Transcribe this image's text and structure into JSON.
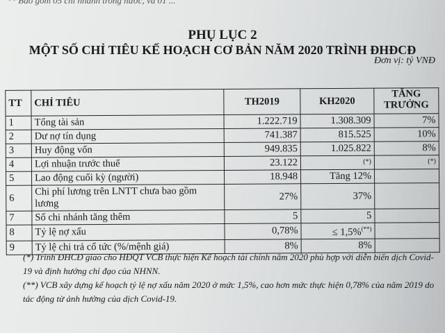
{
  "top_note": "** Bao gồm 05 chi nhánh trong nước, và 01 ...",
  "title": "PHỤ LỤC 2",
  "subtitle": "MỘT SỐ CHỈ TIÊU KẾ HOẠCH CƠ BẢN NĂM 2020 TRÌNH ĐHĐCĐ",
  "unit": "Đơn vị: tỷ VNĐ",
  "table": {
    "headers": [
      "TT",
      "CHỈ TIÊU",
      "TH2019",
      "KH2020",
      "TĂNG TRƯỞNG"
    ],
    "rows": [
      {
        "tt": "1",
        "name": "Tổng tài sản",
        "th2019": "1.222.719",
        "kh2020": "1.308.309",
        "growth": "7%"
      },
      {
        "tt": "2",
        "name": "Dư nợ tín dụng",
        "th2019": "741.387",
        "kh2020": "815.525",
        "growth": "10%"
      },
      {
        "tt": "3",
        "name": "Huy động vốn",
        "th2019": "949.835",
        "kh2020": "1.025.822",
        "growth": "8%"
      },
      {
        "tt": "4",
        "name": "Lợi nhuận trước thuế",
        "th2019": "23.122",
        "kh2020": "(*)",
        "growth": "(*)"
      },
      {
        "tt": "5",
        "name": "Lao động cuối kỳ (người)",
        "th2019": "18.948",
        "kh2020": "Tăng 12%",
        "growth": ""
      },
      {
        "tt": "6",
        "name": "Chi phí lương trên LNTT chưa bao gồm lương",
        "th2019": "27%",
        "kh2020": "37%",
        "growth": ""
      },
      {
        "tt": "7",
        "name": "Số chi nhánh tăng thêm",
        "th2019": "5",
        "kh2020": "5",
        "growth": ""
      },
      {
        "tt": "8",
        "name": "Tỷ lệ nợ xấu",
        "th2019": "0,78%",
        "kh2020": "≤ 1,5%",
        "kh2020_mark": "(**)",
        "growth": ""
      },
      {
        "tt": "9",
        "name": "Tỷ lệ chi trả cổ tức (%/mệnh giá)",
        "th2019": "8%",
        "kh2020": "8%",
        "growth": ""
      }
    ]
  },
  "notes": [
    "(*) Trình ĐHCĐ giao cho HĐQT VCB thực hiện Kế hoạch tài chính năm 2020 phù hợp với diễn biến dịch Covid-19 và định hướng chỉ đạo của NHNN.",
    "(**) VCB xây dựng kế hoạch tỷ lệ nợ xấu năm 2020 ở mức 1,5%, cao hơn mức thực hiện 0,78% của năm 2019 do tác động từ ảnh hưởng của dịch Covid-19."
  ]
}
